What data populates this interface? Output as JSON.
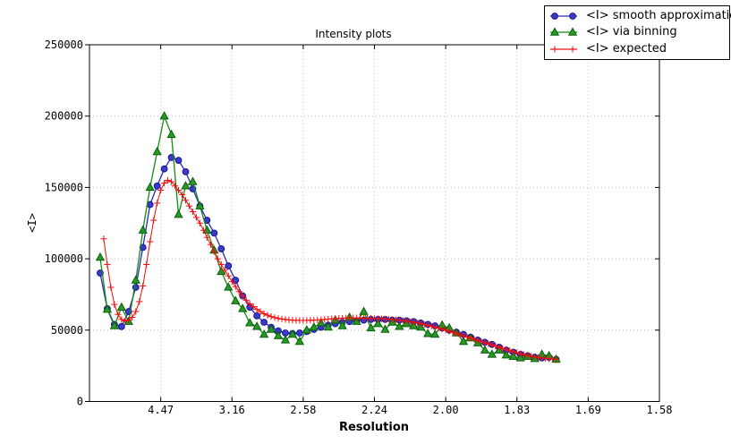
{
  "title": "Intensity plots",
  "axes": {
    "xlabel": "Resolution",
    "ylabel": "<I>"
  },
  "chart_data": {
    "type": "line",
    "title": "Intensity plots",
    "xlabel": "Resolution",
    "ylabel": "<I>",
    "x_axis_note": "x axis is linear in 1/d^2; tick labels give resolution d in Angstrom",
    "xlim_invdsq": [
      0.0,
      0.4
    ],
    "ylim": [
      0,
      250000
    ],
    "x_tick_values_invdsq": [
      0.05,
      0.1,
      0.15,
      0.2,
      0.25,
      0.3,
      0.35,
      0.4
    ],
    "x_tick_labels": [
      "4.47",
      "3.16",
      "2.58",
      "2.24",
      "2.00",
      "1.83",
      "1.69",
      "1.58"
    ],
    "y_tick_values": [
      0,
      50000,
      100000,
      150000,
      200000,
      250000
    ],
    "y_tick_labels": [
      "0",
      "50000",
      "100000",
      "150000",
      "200000",
      "250000"
    ],
    "grid": true,
    "legend_position": "top-right-outside",
    "colors": {
      "grid": "#c4c4c4",
      "axis": "#000000",
      "blue_line": "#2929b8",
      "blue_fill": "#3b3bcb",
      "blue_edge": "#14148f",
      "green_line": "#168916",
      "green_fill": "#279927",
      "green_edge": "#0b5e0b",
      "red": "#f20d0d"
    },
    "series": [
      {
        "name": "<I> smooth approximation",
        "marker": "circle",
        "color": "#2929b8",
        "x": [
          0.0075,
          0.0125,
          0.0175,
          0.0225,
          0.0275,
          0.0325,
          0.0375,
          0.0425,
          0.0475,
          0.0525,
          0.0575,
          0.0625,
          0.0675,
          0.0725,
          0.0775,
          0.0825,
          0.0875,
          0.0925,
          0.0975,
          0.1025,
          0.1075,
          0.1125,
          0.1175,
          0.1225,
          0.1275,
          0.1325,
          0.1375,
          0.1425,
          0.1475,
          0.1525,
          0.1575,
          0.1625,
          0.1675,
          0.1725,
          0.1775,
          0.1825,
          0.1875,
          0.1925,
          0.1975,
          0.2025,
          0.2075,
          0.2125,
          0.2175,
          0.2225,
          0.2275,
          0.2325,
          0.2375,
          0.2425,
          0.2475,
          0.2525,
          0.2575,
          0.2625,
          0.2675,
          0.2725,
          0.2775,
          0.2825,
          0.2875,
          0.2925,
          0.2975,
          0.3025,
          0.3075,
          0.3125,
          0.3175,
          0.3225,
          0.3275
        ],
        "values": [
          90000,
          65000,
          54000,
          52500,
          63000,
          80000,
          108000,
          138000,
          151000,
          163000,
          171000,
          169000,
          161000,
          149000,
          137000,
          127000,
          118000,
          107000,
          95000,
          85000,
          74000,
          66000,
          60000,
          55500,
          52000,
          49500,
          48000,
          47500,
          48000,
          49000,
          50500,
          52000,
          53500,
          54500,
          55500,
          56000,
          56500,
          57000,
          57500,
          57500,
          57500,
          57000,
          57000,
          56500,
          56000,
          55000,
          54000,
          53000,
          51500,
          50000,
          48500,
          47000,
          45000,
          43000,
          41500,
          40000,
          38000,
          36000,
          34500,
          33000,
          32000,
          31000,
          30500,
          31000,
          29500
        ]
      },
      {
        "name": "<I> via binning",
        "marker": "triangle",
        "color": "#168916",
        "x": [
          0.0075,
          0.0125,
          0.0175,
          0.0225,
          0.0275,
          0.0325,
          0.0375,
          0.0425,
          0.0475,
          0.0525,
          0.0575,
          0.0625,
          0.0675,
          0.0725,
          0.0775,
          0.0825,
          0.0875,
          0.0925,
          0.0975,
          0.1025,
          0.1075,
          0.1125,
          0.1175,
          0.1225,
          0.1275,
          0.1325,
          0.1375,
          0.1425,
          0.1475,
          0.1525,
          0.1575,
          0.1625,
          0.1675,
          0.1725,
          0.1775,
          0.1825,
          0.1875,
          0.1925,
          0.1975,
          0.2025,
          0.2075,
          0.2125,
          0.2175,
          0.2225,
          0.2275,
          0.2325,
          0.2375,
          0.2425,
          0.2475,
          0.2525,
          0.2575,
          0.2625,
          0.2675,
          0.2725,
          0.2775,
          0.2825,
          0.2875,
          0.2925,
          0.2975,
          0.3025,
          0.3075,
          0.3125,
          0.3175,
          0.3225,
          0.3275
        ],
        "values": [
          101000,
          64500,
          53000,
          66000,
          56000,
          85000,
          120000,
          150000,
          175000,
          200000,
          187000,
          131000,
          151000,
          154000,
          137000,
          120000,
          106000,
          91000,
          80000,
          70500,
          65000,
          55000,
          52500,
          47000,
          50500,
          46000,
          43000,
          47000,
          42000,
          50000,
          52000,
          55000,
          52000,
          57000,
          53000,
          59000,
          56000,
          63000,
          51500,
          54500,
          50500,
          55500,
          52500,
          54500,
          53000,
          52000,
          47500,
          47000,
          53500,
          51500,
          48000,
          42000,
          44500,
          41000,
          36000,
          33000,
          36000,
          32500,
          31500,
          30500,
          31500,
          30000,
          33000,
          32000,
          29500
        ]
      },
      {
        "name": "<I> expected",
        "marker": "plus",
        "color": "#f20d0d",
        "x": [
          0.01,
          0.0125,
          0.015,
          0.0175,
          0.02,
          0.0225,
          0.025,
          0.0275,
          0.03,
          0.0325,
          0.035,
          0.0375,
          0.04,
          0.0425,
          0.045,
          0.0475,
          0.05,
          0.0525,
          0.055,
          0.0575,
          0.06,
          0.0625,
          0.065,
          0.0675,
          0.07,
          0.0725,
          0.075,
          0.0775,
          0.08,
          0.0825,
          0.085,
          0.0875,
          0.09,
          0.0925,
          0.095,
          0.0975,
          0.1,
          0.1025,
          0.105,
          0.1075,
          0.11,
          0.1125,
          0.115,
          0.1175,
          0.12,
          0.1225,
          0.125,
          0.1275,
          0.13,
          0.1325,
          0.135,
          0.1375,
          0.14,
          0.1425,
          0.145,
          0.1475,
          0.15,
          0.1525,
          0.155,
          0.1575,
          0.16,
          0.1625,
          0.165,
          0.1675,
          0.17,
          0.1725,
          0.175,
          0.1775,
          0.18,
          0.1825,
          0.185,
          0.1875,
          0.19,
          0.1925,
          0.195,
          0.1975,
          0.2,
          0.2025,
          0.205,
          0.2075,
          0.21,
          0.2125,
          0.215,
          0.2175,
          0.22,
          0.2225,
          0.225,
          0.2275,
          0.23,
          0.2325,
          0.235,
          0.2375,
          0.24,
          0.2425,
          0.245,
          0.2475,
          0.25,
          0.2525,
          0.255,
          0.2575,
          0.26,
          0.2625,
          0.265,
          0.2675,
          0.27,
          0.2725,
          0.275,
          0.2775,
          0.28,
          0.2825,
          0.285,
          0.2875,
          0.29,
          0.2925,
          0.295,
          0.2975,
          0.3,
          0.3025,
          0.305,
          0.3075,
          0.31,
          0.3125,
          0.315,
          0.3175,
          0.32,
          0.3225,
          0.325,
          0.3275
        ],
        "values": [
          114000,
          96000,
          80000,
          68000,
          61000,
          57500,
          56500,
          57000,
          59000,
          63000,
          70000,
          81000,
          96000,
          112000,
          127000,
          139000,
          148000,
          153000,
          155000,
          154000,
          151000,
          148000,
          145000,
          141000,
          137000,
          133000,
          129000,
          125000,
          120000,
          115000,
          110000,
          105000,
          100000,
          96000,
          92000,
          88000,
          84000,
          80500,
          77000,
          74000,
          71000,
          68500,
          66500,
          64500,
          63000,
          61500,
          60500,
          59500,
          58800,
          58200,
          57800,
          57500,
          57200,
          57000,
          56900,
          56800,
          56800,
          56800,
          56900,
          57000,
          57100,
          57300,
          57500,
          57700,
          57900,
          58100,
          58300,
          58400,
          58500,
          58600,
          58600,
          58600,
          58500,
          58400,
          58300,
          58200,
          58100,
          58000,
          57900,
          57800,
          57600,
          57400,
          57200,
          57000,
          56700,
          56400,
          56000,
          55600,
          55100,
          54600,
          54000,
          53400,
          52800,
          52100,
          51400,
          50700,
          50000,
          49200,
          48400,
          47600,
          46800,
          46000,
          45200,
          44400,
          43600,
          42800,
          42000,
          41200,
          40400,
          39600,
          38800,
          38000,
          37200,
          36400,
          35600,
          34900,
          34200,
          33500,
          32900,
          32300,
          31800,
          31300,
          30900,
          30500,
          30200,
          30000,
          29800,
          29600
        ]
      }
    ]
  }
}
